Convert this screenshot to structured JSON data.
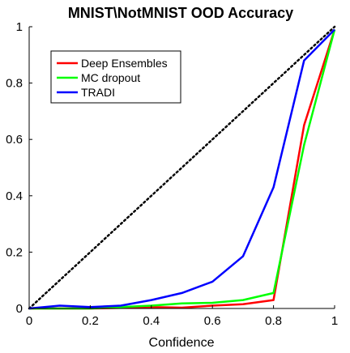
{
  "chart_data": {
    "type": "line",
    "title": "MNIST\\NotMNIST OOD Accuracy",
    "xlabel": "Confidence",
    "ylabel": "",
    "xlim": [
      0,
      1
    ],
    "ylim": [
      0,
      1
    ],
    "x_ticks": [
      "0",
      "0.2",
      "0.4",
      "0.6",
      "0.8",
      "1"
    ],
    "y_ticks": [
      "0",
      "0.2",
      "0.4",
      "0.6",
      "0.8",
      "1"
    ],
    "grid": false,
    "legend_position": "top-left",
    "reference_line": {
      "style": "dotted",
      "color": "#000000",
      "x": [
        0,
        1
      ],
      "y": [
        0,
        1
      ]
    },
    "series": [
      {
        "name": "Deep Ensembles",
        "color": "#ff0000",
        "x": [
          0,
          0.1,
          0.2,
          0.3,
          0.4,
          0.5,
          0.6,
          0.7,
          0.8,
          0.9,
          1.0
        ],
        "y": [
          0,
          0.0,
          0.0,
          0.002,
          0.005,
          0.003,
          0.01,
          0.015,
          0.03,
          0.65,
          0.99
        ]
      },
      {
        "name": "MC dropout",
        "color": "#00ff00",
        "x": [
          0,
          0.1,
          0.2,
          0.3,
          0.4,
          0.5,
          0.6,
          0.7,
          0.8,
          0.9,
          1.0
        ],
        "y": [
          0,
          0.0,
          0.0,
          0.005,
          0.01,
          0.018,
          0.02,
          0.03,
          0.055,
          0.58,
          0.99
        ]
      },
      {
        "name": "TRADI",
        "color": "#0000ff",
        "x": [
          0,
          0.1,
          0.2,
          0.3,
          0.4,
          0.5,
          0.6,
          0.7,
          0.8,
          0.9,
          1.0
        ],
        "y": [
          0,
          0.01,
          0.005,
          0.01,
          0.03,
          0.055,
          0.095,
          0.185,
          0.43,
          0.88,
          0.99
        ]
      }
    ]
  }
}
